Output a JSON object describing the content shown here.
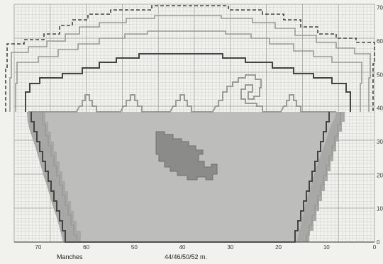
{
  "caption": {
    "left": "Manches",
    "right": "44/46/50/52 m."
  },
  "chart_data": {
    "type": "knitting-chart",
    "x_ticks": [
      {
        "label": "70",
        "value": 70
      },
      {
        "label": "60",
        "value": 60
      },
      {
        "label": "50",
        "value": 50
      },
      {
        "label": "40",
        "value": 40
      },
      {
        "label": "30",
        "value": 30
      },
      {
        "label": "20",
        "value": 20
      },
      {
        "label": "10",
        "value": 10
      },
      {
        "label": "0",
        "value": 0
      }
    ],
    "y_ticks": [
      {
        "label": "0",
        "value": 0
      },
      {
        "label": "10",
        "value": 10
      },
      {
        "label": "20",
        "value": 20
      },
      {
        "label": "30",
        "value": 30
      },
      {
        "label": "40",
        "value": 40
      },
      {
        "label": "50",
        "value": 50
      },
      {
        "label": "60",
        "value": 60
      },
      {
        "label": "70",
        "value": 70
      }
    ],
    "xlim": [
      75,
      0
    ],
    "ylim": [
      0,
      71
    ],
    "grid": true,
    "colors": {
      "background": "#f1f1ee",
      "grid_minor": "#cfd0cc",
      "grid_major": "#9a9b97",
      "fill_light": "#bdbdbb",
      "fill_dark": "#8b8b89",
      "outline_dark": "#444444",
      "outline_light": "#9a9a98"
    }
  }
}
